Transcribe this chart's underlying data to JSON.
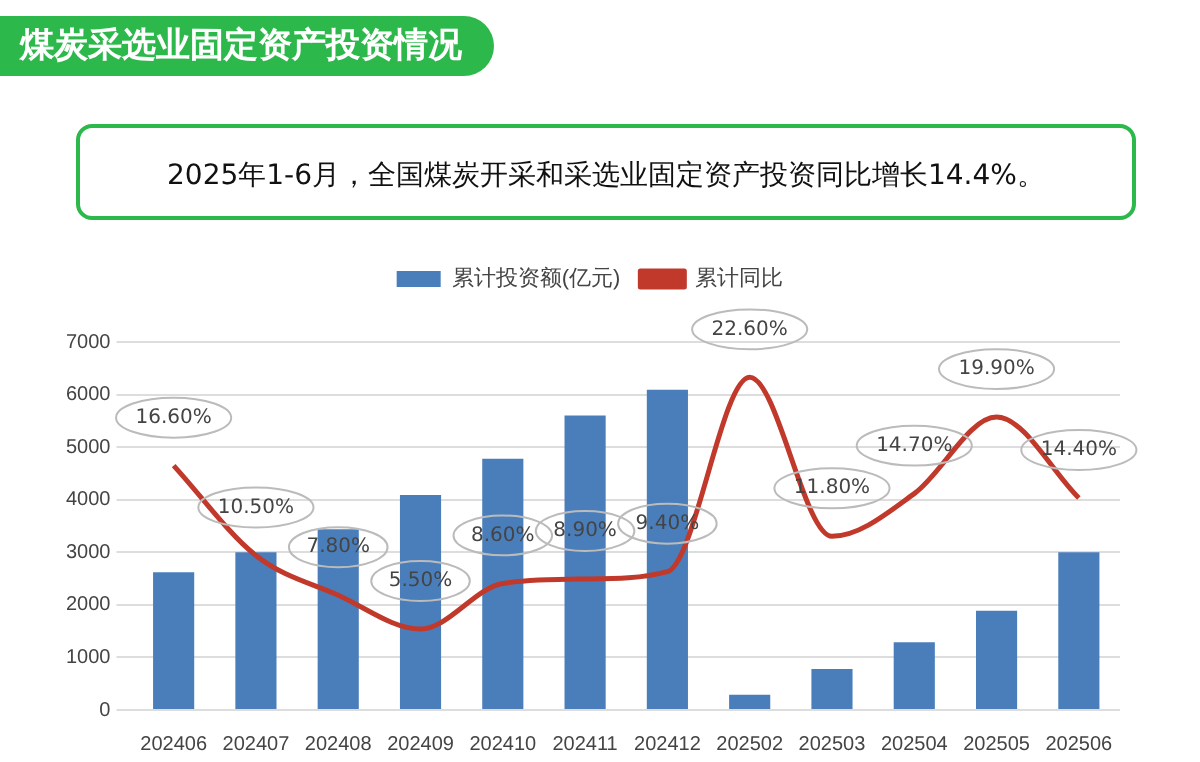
{
  "chart_data": {
    "type": "bar",
    "title": "煤炭采选业固定资产投资情况",
    "subtitle": "2025年1-6月，全国煤炭开采和采选业固定资产投资同比增长14.4%。",
    "categories": [
      "202406",
      "202407",
      "202408",
      "202409",
      "202410",
      "202411",
      "202412",
      "202502",
      "202503",
      "202504",
      "202505",
      "202506"
    ],
    "series": [
      {
        "name": "累计投资额(亿元)",
        "color": "#4a7ebb",
        "values": [
          2620,
          3000,
          3440,
          4090,
          4780,
          5600,
          6090,
          290,
          780,
          1290,
          1890,
          3000
        ]
      },
      {
        "name": "累计同比",
        "type": "line",
        "axis": "y2",
        "color": "#c0392b",
        "values": [
          16.6,
          10.5,
          7.8,
          5.5,
          8.6,
          8.9,
          9.4,
          22.6,
          11.8,
          14.7,
          19.9,
          14.4
        ],
        "value_labels": [
          "16.60%",
          "10.50%",
          "7.80%",
          "5.50%",
          "8.60%",
          "8.90%",
          "9.40%",
          "22.60%",
          "11.80%",
          "14.70%",
          "19.90%",
          "14.40%"
        ]
      }
    ],
    "ylim": [
      0,
      7000
    ],
    "yticks": [
      0,
      1000,
      2000,
      3000,
      4000,
      5000,
      6000,
      7000
    ],
    "y2lim": [
      0,
      25
    ],
    "grid": "y",
    "legend": "top",
    "marker": "none",
    "line_style": "solid"
  }
}
